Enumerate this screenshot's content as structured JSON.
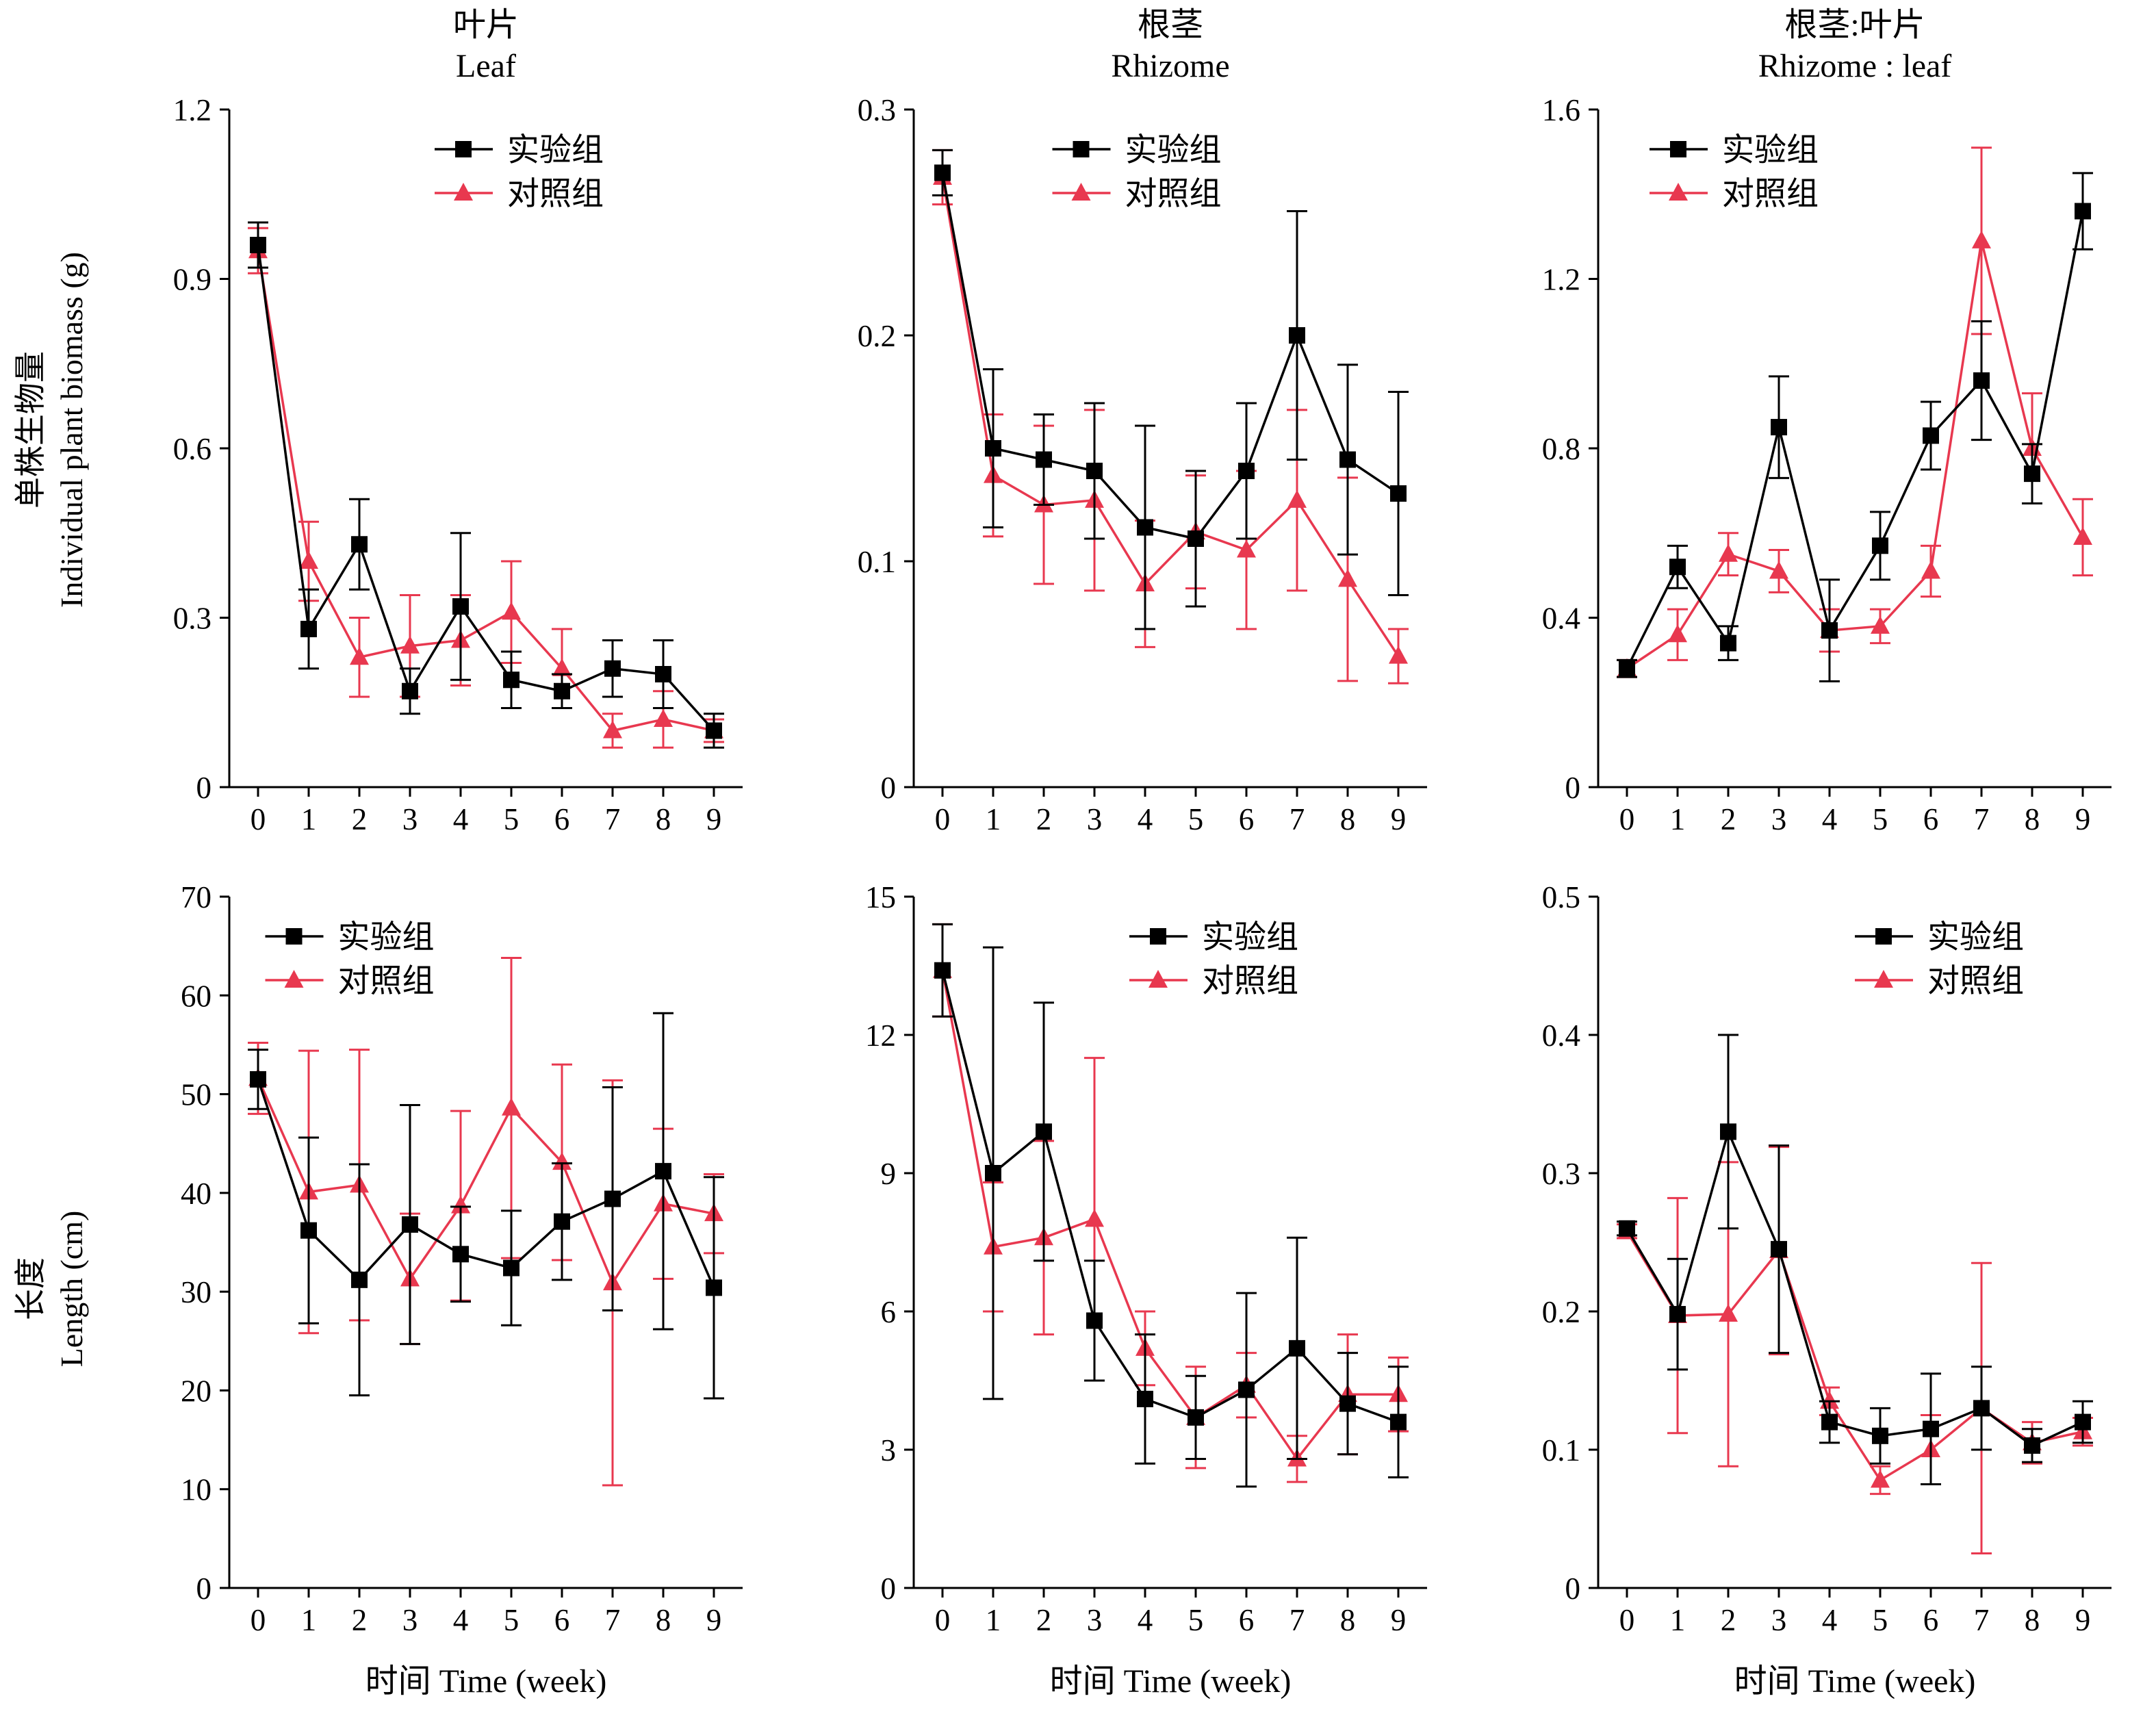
{
  "page": {
    "background": "#ffffff"
  },
  "colors": {
    "experimental": "#000000",
    "control": "#e8384f"
  },
  "legend": {
    "experimental": "实验组",
    "control": "对照组"
  },
  "x_axis_title": "时间 Time (week)",
  "row_labels": [
    {
      "zh": "单株生物量",
      "en": "Individual plant biomass (g)"
    },
    {
      "zh": "长度",
      "en": "Length (cm)"
    }
  ],
  "chart_data": [
    {
      "type": "line",
      "title_zh": "叶片",
      "title_en": "Leaf",
      "xlabel": "",
      "ylabel": "单株生物量 Individual plant biomass (g)",
      "x": [
        0,
        1,
        2,
        3,
        4,
        5,
        6,
        7,
        8,
        9
      ],
      "ylim": [
        0,
        1.2
      ],
      "yticks": [
        0,
        0.3,
        0.6,
        0.9,
        1.2
      ],
      "ytick_labels": [
        "0",
        "0.3",
        "0.6",
        "0.9",
        "1.2"
      ],
      "legend_x": 0.4,
      "series": [
        {
          "name": "实验组",
          "marker": "square",
          "color": "#000000",
          "values": [
            0.96,
            0.28,
            0.43,
            0.17,
            0.32,
            0.19,
            0.17,
            0.21,
            0.2,
            0.1
          ],
          "errors": [
            0.04,
            0.07,
            0.08,
            0.04,
            0.13,
            0.05,
            0.03,
            0.05,
            0.06,
            0.03
          ]
        },
        {
          "name": "对照组",
          "marker": "triangle",
          "color": "#e8384f",
          "values": [
            0.95,
            0.4,
            0.23,
            0.25,
            0.26,
            0.31,
            0.21,
            0.1,
            0.12,
            0.1
          ],
          "errors": [
            0.04,
            0.07,
            0.07,
            0.09,
            0.08,
            0.09,
            0.07,
            0.03,
            0.05,
            0.02
          ]
        }
      ]
    },
    {
      "type": "line",
      "title_zh": "根茎",
      "title_en": "Rhizome",
      "xlabel": "",
      "ylabel": "单株生物量 Individual plant biomass (g)",
      "x": [
        0,
        1,
        2,
        3,
        4,
        5,
        6,
        7,
        8,
        9
      ],
      "ylim": [
        0,
        0.3
      ],
      "yticks": [
        0,
        0.1,
        0.2,
        0.3
      ],
      "ytick_labels": [
        "0",
        "0.1",
        "0.2",
        "0.3"
      ],
      "legend_x": 0.27,
      "series": [
        {
          "name": "实验组",
          "marker": "square",
          "color": "#000000",
          "values": [
            0.272,
            0.15,
            0.145,
            0.14,
            0.115,
            0.11,
            0.14,
            0.2,
            0.145,
            0.13
          ],
          "errors": [
            0.01,
            0.035,
            0.02,
            0.03,
            0.045,
            0.03,
            0.03,
            0.055,
            0.042,
            0.045
          ]
        },
        {
          "name": "对照组",
          "marker": "triangle",
          "color": "#e8384f",
          "values": [
            0.27,
            0.138,
            0.125,
            0.127,
            0.09,
            0.113,
            0.105,
            0.127,
            0.092,
            0.058
          ],
          "errors": [
            0.012,
            0.027,
            0.035,
            0.04,
            0.028,
            0.025,
            0.035,
            0.04,
            0.045,
            0.012
          ]
        }
      ]
    },
    {
      "type": "line",
      "title_zh": "根茎:叶片",
      "title_en": "Rhizome : leaf",
      "xlabel": "",
      "ylabel": "单株生物量 Individual plant biomass (g)",
      "x": [
        0,
        1,
        2,
        3,
        4,
        5,
        6,
        7,
        8,
        9
      ],
      "ylim": [
        0,
        1.6
      ],
      "yticks": [
        0,
        0.4,
        0.8,
        1.2,
        1.6
      ],
      "ytick_labels": [
        "0",
        "0.4",
        "0.8",
        "1.2",
        "1.6"
      ],
      "legend_x": 0.1,
      "series": [
        {
          "name": "实验组",
          "marker": "square",
          "color": "#000000",
          "values": [
            0.28,
            0.52,
            0.34,
            0.85,
            0.37,
            0.57,
            0.83,
            0.96,
            0.74,
            1.36
          ],
          "errors": [
            0.02,
            0.05,
            0.04,
            0.12,
            0.12,
            0.08,
            0.08,
            0.14,
            0.07,
            0.09
          ]
        },
        {
          "name": "对照组",
          "marker": "triangle",
          "color": "#e8384f",
          "values": [
            0.28,
            0.36,
            0.55,
            0.51,
            0.37,
            0.38,
            0.51,
            1.29,
            0.8,
            0.59
          ],
          "errors": [
            0.02,
            0.06,
            0.05,
            0.05,
            0.05,
            0.04,
            0.06,
            0.22,
            0.13,
            0.09
          ]
        }
      ]
    },
    {
      "type": "line",
      "title_zh": "",
      "title_en": "",
      "xlabel": "时间 Time (week)",
      "ylabel": "长度 Length (cm)",
      "x": [
        0,
        1,
        2,
        3,
        4,
        5,
        6,
        7,
        8,
        9
      ],
      "ylim": [
        0,
        70
      ],
      "yticks": [
        0,
        10,
        20,
        30,
        40,
        50,
        60,
        70
      ],
      "ytick_labels": [
        "0",
        "10",
        "20",
        "30",
        "40",
        "50",
        "60",
        "70"
      ],
      "legend_x": 0.07,
      "series": [
        {
          "name": "实验组",
          "marker": "square",
          "color": "#000000",
          "values": [
            51.5,
            36.2,
            31.2,
            36.8,
            33.8,
            32.4,
            37.1,
            39.4,
            42.2,
            30.4
          ],
          "errors": [
            3.0,
            9.4,
            11.7,
            12.1,
            4.8,
            5.8,
            5.9,
            11.3,
            16.0,
            11.2
          ]
        },
        {
          "name": "对照组",
          "marker": "triangle",
          "color": "#e8384f",
          "values": [
            51.6,
            40.1,
            40.8,
            31.3,
            38.7,
            48.6,
            43.1,
            30.9,
            38.9,
            37.9
          ],
          "errors": [
            3.6,
            14.3,
            13.7,
            6.6,
            9.6,
            15.2,
            9.9,
            20.5,
            7.6,
            4.0
          ]
        }
      ]
    },
    {
      "type": "line",
      "title_zh": "",
      "title_en": "",
      "xlabel": "时间 Time (week)",
      "ylabel": "长度 Length (cm)",
      "x": [
        0,
        1,
        2,
        3,
        4,
        5,
        6,
        7,
        8,
        9
      ],
      "ylim": [
        0,
        15
      ],
      "yticks": [
        0,
        3,
        6,
        9,
        12,
        15
      ],
      "ytick_labels": [
        "0",
        "3",
        "6",
        "9",
        "12",
        "15"
      ],
      "legend_x": 0.42,
      "series": [
        {
          "name": "实验组",
          "marker": "square",
          "color": "#000000",
          "values": [
            13.4,
            9.0,
            9.9,
            5.8,
            4.1,
            3.7,
            4.3,
            5.2,
            4.0,
            3.6
          ],
          "errors": [
            1.0,
            4.9,
            2.8,
            1.3,
            1.4,
            0.9,
            2.1,
            2.4,
            1.1,
            1.2
          ]
        },
        {
          "name": "对照组",
          "marker": "triangle",
          "color": "#e8384f",
          "values": [
            13.4,
            7.4,
            7.6,
            8.0,
            5.2,
            3.7,
            4.4,
            2.8,
            4.2,
            4.2
          ],
          "errors": [
            1.0,
            1.4,
            2.1,
            3.5,
            0.8,
            1.1,
            0.7,
            0.5,
            1.3,
            0.8
          ]
        }
      ]
    },
    {
      "type": "line",
      "title_zh": "",
      "title_en": "",
      "xlabel": "时间 Time (week)",
      "ylabel": "长度 Length (cm)",
      "x": [
        0,
        1,
        2,
        3,
        4,
        5,
        6,
        7,
        8,
        9
      ],
      "ylim": [
        0,
        0.5
      ],
      "yticks": [
        0,
        0.1,
        0.2,
        0.3,
        0.4,
        0.5
      ],
      "ytick_labels": [
        "0",
        "0.1",
        "0.2",
        "0.3",
        "0.4",
        "0.5"
      ],
      "legend_x": 0.5,
      "series": [
        {
          "name": "实验组",
          "marker": "square",
          "color": "#000000",
          "values": [
            0.26,
            0.198,
            0.33,
            0.245,
            0.12,
            0.11,
            0.115,
            0.13,
            0.103,
            0.12
          ],
          "errors": [
            0.005,
            0.04,
            0.07,
            0.075,
            0.015,
            0.02,
            0.04,
            0.03,
            0.012,
            0.015
          ]
        },
        {
          "name": "对照组",
          "marker": "triangle",
          "color": "#e8384f",
          "values": [
            0.258,
            0.197,
            0.198,
            0.244,
            0.135,
            0.078,
            0.1,
            0.13,
            0.105,
            0.113
          ],
          "errors": [
            0.005,
            0.085,
            0.11,
            0.075,
            0.01,
            0.01,
            0.025,
            0.105,
            0.015,
            0.01
          ]
        }
      ]
    }
  ]
}
